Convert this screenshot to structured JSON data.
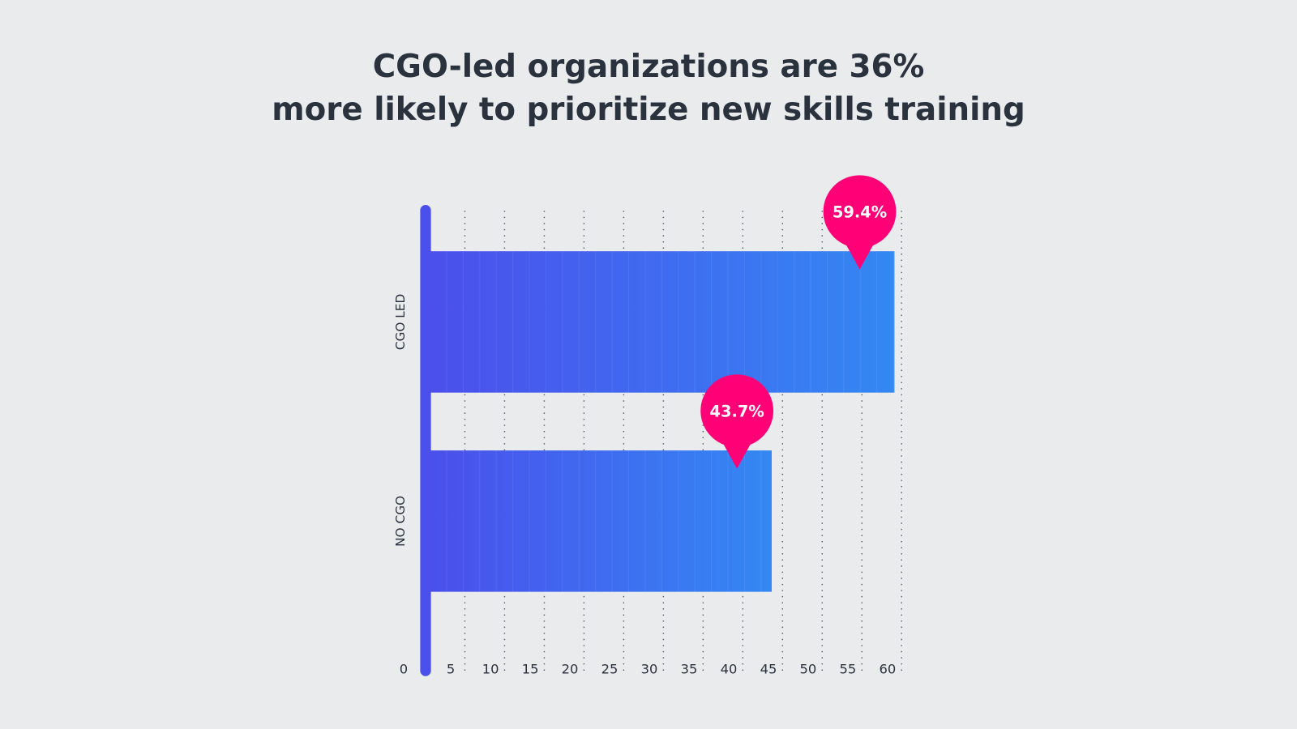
{
  "chart_data": {
    "type": "bar",
    "orientation": "horizontal",
    "title": [
      "CGO-led organizations are 36%",
      "more likely to prioritize new skills training"
    ],
    "categories": [
      "CGO LED",
      "NO CGO"
    ],
    "values": [
      59.4,
      43.7
    ],
    "data_labels": [
      "59.4%",
      "43.7%"
    ],
    "xlim": [
      0,
      60
    ],
    "x_ticks": [
      "0",
      "5",
      "10",
      "15",
      "20",
      "25",
      "30",
      "35",
      "40",
      "45",
      "50",
      "55",
      "60"
    ],
    "grid": "vertical dotted",
    "colors": {
      "bar_start": "#4b4fec",
      "bar_end": "#3388f3",
      "label_bubble": "#ff0077",
      "axis": "#4b4fec",
      "background": "#eaebed",
      "text": "#2a323e"
    }
  }
}
